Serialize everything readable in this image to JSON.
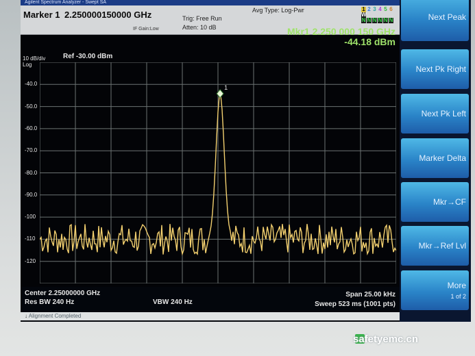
{
  "window": {
    "title": "Agilent Spectrum Analyzer - Swept SA"
  },
  "header": {
    "marker_label": "Marker 1",
    "marker_value": "2.250000150000 GHz",
    "gain": "IF Gain:Low",
    "trig": "Trig: Free Run",
    "atten": "Atten: 10 dB",
    "avg": "Avg Type: Log-Pwr",
    "trace_digits": [
      "1",
      "2",
      "3",
      "4",
      "5",
      "6"
    ],
    "trace_row2": [
      "W",
      "W",
      "W",
      "W",
      "W",
      "W"
    ],
    "trace_row3": [
      "N",
      "N",
      "N",
      "N",
      "N",
      "N"
    ]
  },
  "plot": {
    "marker_readout_1": "Mkr1 2.250 000 150 GHz",
    "marker_readout_2": "-44.18 dBm",
    "scale": "10 dB/div",
    "scale_type": "Log",
    "ref_level": "Ref -30.00 dBm",
    "marker_tag": "1"
  },
  "bottom": {
    "center": "Center 2.25000000 GHz",
    "res_bw": "Res BW 240 Hz",
    "vbw": "VBW 240 Hz",
    "span": "Span 25.00 kHz",
    "sweep": "Sweep  523 ms (1001 pts)"
  },
  "status": {
    "text": "Alignment Completed"
  },
  "softkeys": [
    {
      "label": "Next Peak"
    },
    {
      "label": "Next Pk Right"
    },
    {
      "label": "Next Pk Left"
    },
    {
      "label": "Marker Delta"
    },
    {
      "label": "Mkr→CF"
    },
    {
      "label": "Mkr→Ref Lvl"
    },
    {
      "label": "More",
      "sub": "1 of 2"
    }
  ],
  "watermark": {
    "text": "safetyemc.cn"
  },
  "colors": {
    "trace": "#f3d06f",
    "grid": "#6c7373",
    "marker_text": "#9fe36a",
    "softkey": "#2a84c8"
  },
  "chart_data": {
    "type": "line",
    "ylim": [
      -130,
      -30
    ],
    "y_ticks": [
      -40,
      -50,
      -60,
      -70,
      -80,
      -90,
      -100,
      -110,
      -120
    ],
    "y_tick_labels": [
      "-40.0",
      "-50.0",
      "-60.0",
      "-70.0",
      "-80.0",
      "-90.0",
      "-100",
      "-110",
      "-120"
    ],
    "x_range_ghz": [
      2.2499875,
      2.2500125
    ],
    "marker": {
      "x_ghz": 2.25000015,
      "y_dbm": -44.18
    },
    "series": [
      {
        "values_desc": "noise floor near -110 dBm with single peak at marker"
      }
    ]
  }
}
